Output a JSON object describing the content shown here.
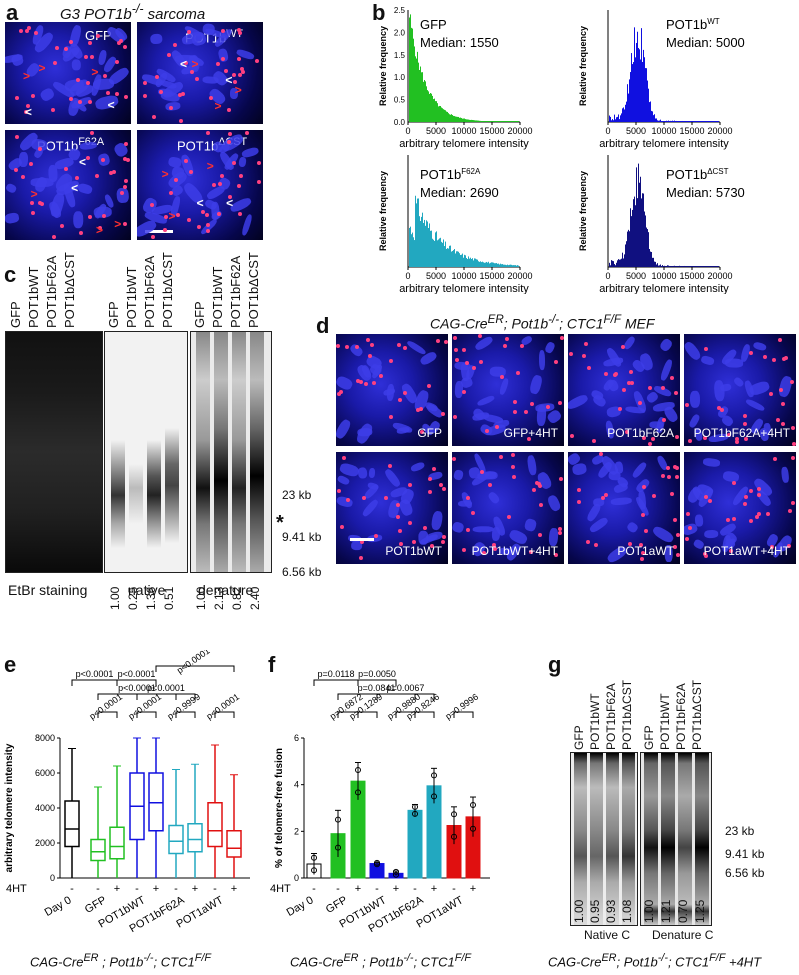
{
  "panel_a": {
    "letter": "a",
    "title": "G3 POT1b-/- sarcoma",
    "labels": [
      "GFP",
      "POT1bWT",
      "POT1bF62A",
      "POT1bΔCST"
    ]
  },
  "panel_b": {
    "letter": "b",
    "hist": [
      {
        "name": "GFP",
        "median": "Median: 1550",
        "color": "#22c022",
        "peak": 0.02
      },
      {
        "name": "POT1bWT",
        "median": "Median: 5000",
        "color": "#1010e0",
        "peak": 0.25
      },
      {
        "name": "POT1bF62A",
        "median": "Median: 2690",
        "color": "#22a8c0",
        "peak": 0.08
      },
      {
        "name": "POT1bΔCST",
        "median": "Median: 5730",
        "color": "#101080",
        "peak": 0.27
      }
    ],
    "ylabel": "Relative frequency",
    "xlabel": "arbitrary telomere intensity",
    "xticks": [
      "0",
      "5000",
      "10000",
      "15000",
      "20000"
    ],
    "yticks_gfp": [
      "0.0",
      "0.5",
      "1.0",
      "1.5",
      "2.0",
      "2.5"
    ]
  },
  "panel_c": {
    "letter": "c",
    "lanes": [
      "GFP",
      "POT1bWT",
      "POT1bF62A",
      "POT1bΔCST"
    ],
    "native_vals": [
      "1.00",
      "0.25",
      "1.36",
      "0.51"
    ],
    "denature_vals": [
      "1.00",
      "2.13",
      "0.82",
      "2.40"
    ],
    "markers": [
      "23 kb",
      "9.41 kb",
      "6.56 kb"
    ],
    "star": "*",
    "bottom": [
      "EtBr staining",
      "native",
      "denature"
    ]
  },
  "panel_d": {
    "letter": "d",
    "title": "CAG-CreER; Pot1b-/-; CTC1F/F MEF",
    "labels": [
      "GFP",
      "GFP+4HT",
      "POT1bF62A",
      "POT1bF62A+4HT",
      "POT1bWT",
      "POT1bWT+4HT",
      "POT1aWT",
      "POT1aWT+4HT"
    ]
  },
  "panel_e": {
    "letter": "e",
    "ylabel": "arbitrary telomere intensity",
    "yticks": [
      "0",
      "2000",
      "4000",
      "6000",
      "8000"
    ],
    "pvals": [
      "p<0.0001",
      "p<0.0001",
      "p<0.0001",
      "p<0.0001",
      "p<0.0001",
      "p<0.0001",
      "p<0.0001",
      "p<0.9999",
      "p<0.0001"
    ],
    "row4ht": "4HT",
    "xcats": [
      "Day 0",
      "GFP",
      "POT1bWT",
      "POT1bF62A",
      "POT1aWT"
    ],
    "footer": "CAG-CreER ; Pot1b-/-; CTC1F/F"
  },
  "panel_f": {
    "letter": "f",
    "ylabel": "% of telomere-free fusion",
    "yticks": [
      "0",
      "2",
      "4",
      "6"
    ],
    "pvals": [
      "p=0.0118",
      "p=0.0050",
      "p=0.0841",
      "p=0.6872",
      "p=0.1289",
      "p=0.9880",
      "p=0.0067",
      "p=0.8246",
      "p=0.9996"
    ],
    "row4ht": "4HT",
    "xcats": [
      "Day 0",
      "GFP",
      "POT1bWT",
      "POT1bF62A",
      "POT1aWT"
    ],
    "footer": "CAG-CreER ; Pot1b-/-; CTC1F/F",
    "chart_data": {
      "type": "bar",
      "categories": [
        "Day 0",
        "GFP -",
        "GFP +",
        "POT1bWT -",
        "POT1bWT +",
        "POT1bF62A -",
        "POT1bF62A +",
        "POT1aWT -",
        "POT1aWT +"
      ],
      "values": [
        0.6,
        1.9,
        4.15,
        0.62,
        0.2,
        2.9,
        3.95,
        2.25,
        2.62
      ],
      "ylim": [
        0,
        6
      ]
    }
  },
  "panel_g": {
    "letter": "g",
    "lanes": [
      "GFP",
      "POT1bWT",
      "POT1bF62A",
      "POT1bΔCST"
    ],
    "native_vals": [
      "1.00",
      "0.95",
      "0.93",
      "1.08"
    ],
    "denature_vals": [
      "1.00",
      "1.21",
      "0.70",
      "1.25"
    ],
    "markers": [
      "23 kb",
      "9.41 kb",
      "6.56 kb"
    ],
    "bottom": [
      "Native C",
      "Denature C"
    ],
    "footer": "CAG-CreER; Pot1b-/-; CTC1F/F +4HT"
  }
}
